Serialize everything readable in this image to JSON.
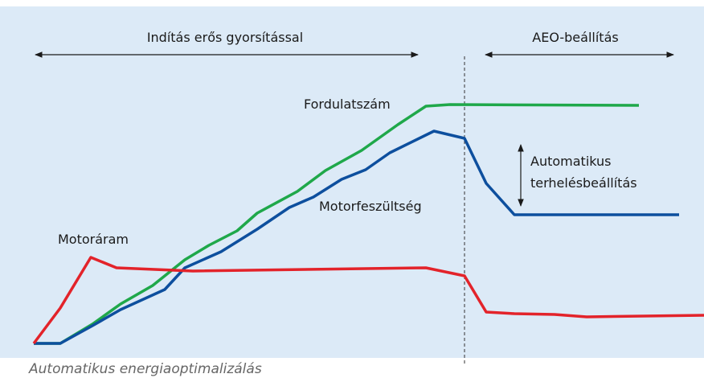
{
  "phases": {
    "start": "Indítás erős gyorsítással",
    "aeo": "AEO-beállítás"
  },
  "curves": {
    "speed": "Fordulatszám",
    "voltage": "Motorfeszültség",
    "current": "Motoráram"
  },
  "annotation": {
    "line1": "Automatikus",
    "line2": "terhelésbeállítás"
  },
  "caption": "Automatikus energiaoptimalizálás"
}
